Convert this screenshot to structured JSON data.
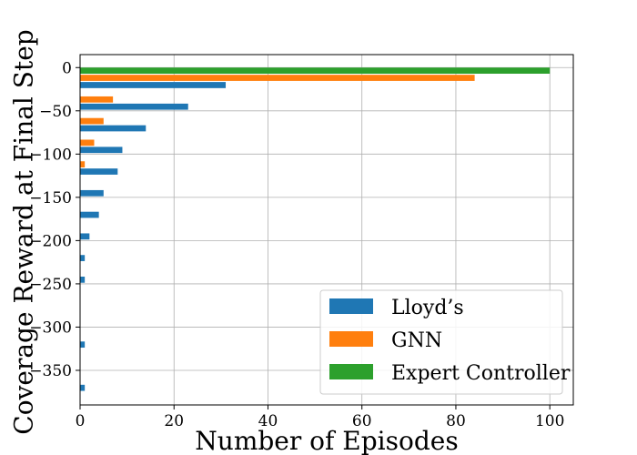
{
  "chart_data": {
    "type": "bar",
    "orientation": "horizontal",
    "xlabel": "Number of Episodes",
    "ylabel": "Coverage Reward at Final Step",
    "xlim": [
      0,
      105
    ],
    "ylim": [
      -390,
      15
    ],
    "x_ticks": [
      0,
      20,
      40,
      60,
      80,
      100
    ],
    "y_ticks": [
      0,
      -50,
      -100,
      -150,
      -200,
      -250,
      -300,
      -350
    ],
    "x_tick_labels": [
      "0",
      "20",
      "40",
      "60",
      "80",
      "100"
    ],
    "y_tick_labels": [
      "0",
      "−50",
      "−100",
      "−150",
      "−200",
      "−250",
      "−300",
      "−350"
    ],
    "grid": true,
    "legend_position": "bottom-right",
    "bin_width": 25,
    "series": [
      {
        "name": "Lloyd’s",
        "color": "#1f77b4",
        "bins": [
          -12.5,
          -37.5,
          -62.5,
          -87.5,
          -112.5,
          -137.5,
          -162.5,
          -187.5,
          -212.5,
          -237.5,
          -262.5,
          -287.5,
          -312.5,
          -337.5,
          -362.5
        ],
        "values": [
          31,
          23,
          14,
          9,
          8,
          5,
          4,
          2,
          1,
          1,
          0,
          0,
          1,
          0,
          1
        ]
      },
      {
        "name": "GNN",
        "color": "#ff7f0e",
        "bins": [
          -12.5,
          -37.5,
          -62.5,
          -87.5,
          -112.5
        ],
        "values": [
          84,
          7,
          5,
          3,
          1
        ]
      },
      {
        "name": "Expert Controller",
        "color": "#2ca02c",
        "bins": [
          -12.5
        ],
        "values": [
          100
        ]
      }
    ]
  }
}
